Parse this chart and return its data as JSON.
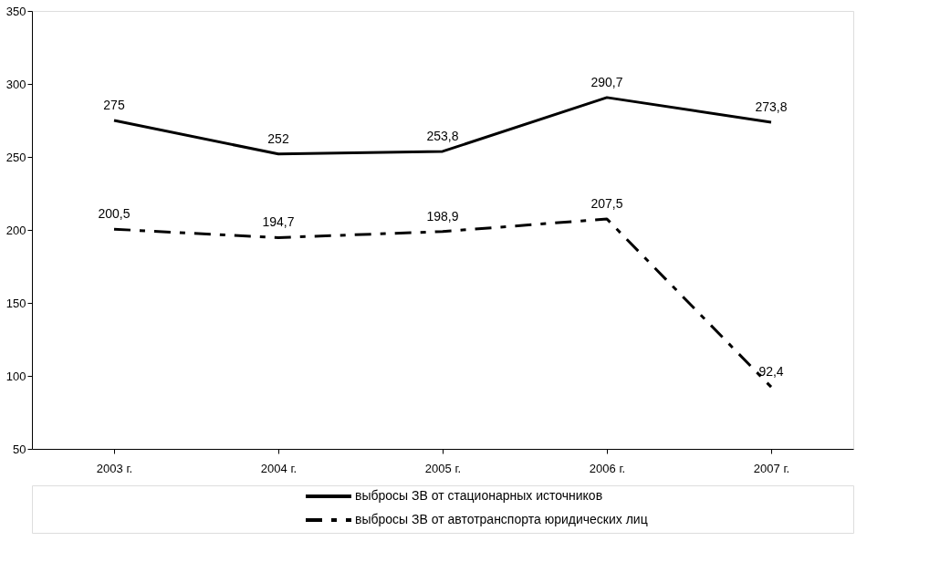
{
  "chart_data": {
    "type": "line",
    "categories": [
      "2003 г.",
      "2004 г.",
      "2005 г.",
      "2006 г.",
      "2007 г."
    ],
    "series": [
      {
        "name": "выбросы ЗВ от стационарных источников",
        "color": "#000000",
        "line_style": "solid",
        "values": [
          275,
          252,
          253.8,
          290.7,
          273.8
        ],
        "value_labels": [
          "275",
          "252",
          "253,8",
          "290,7",
          "273,8"
        ]
      },
      {
        "name": "выбросы ЗВ от автотранспорта юридических лиц",
        "color": "#000000",
        "line_style": "dashed",
        "values": [
          200.5,
          194.7,
          198.9,
          207.5,
          92.4
        ],
        "value_labels": [
          "200,5",
          "194,7",
          "198,9",
          "207,5",
          "92,4"
        ]
      }
    ],
    "ylim": [
      50,
      350
    ],
    "yticks": [
      50,
      100,
      150,
      200,
      250,
      300,
      350
    ],
    "grid": false,
    "legend": "bottom",
    "marker": "none"
  }
}
